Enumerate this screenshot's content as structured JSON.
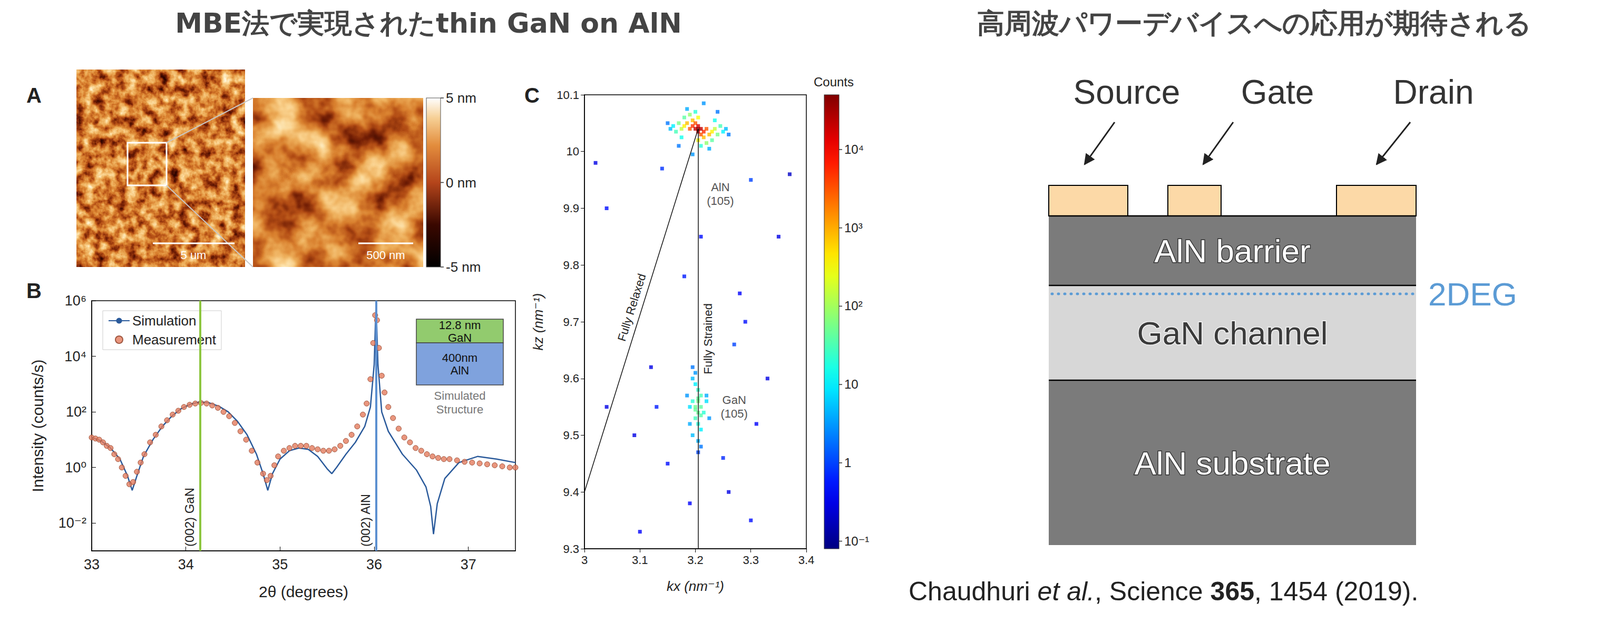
{
  "header": {
    "left": "MBE法で実現されたthin GaN on AlN",
    "right": "高周波パワーデバイスへの応用が期待される"
  },
  "panel_a": {
    "label": "A",
    "scale_bars": [
      "5 um",
      "500 nm"
    ],
    "colorbar": {
      "range": [
        -5,
        5
      ],
      "ticks": [
        {
          "value": 5,
          "label": "5 nm"
        },
        {
          "value": 0,
          "label": "0 nm"
        },
        {
          "value": -5,
          "label": "-5 nm"
        }
      ]
    }
  },
  "chart_data": [
    {
      "panel": "B",
      "type": "line",
      "log": "y",
      "xlabel": "2θ (degrees)",
      "ylabel": "Intensity (counts/s)",
      "xlim": [
        33,
        37.5
      ],
      "xticks": [
        33,
        34,
        35,
        36,
        37
      ],
      "ylim": [
        0.001,
        1000000
      ],
      "yticks": [
        {
          "value": 1000000,
          "label": "10⁶"
        },
        {
          "value": 10000,
          "label": "10⁴"
        },
        {
          "value": 100,
          "label": "10²"
        },
        {
          "value": 1,
          "label": "10⁰"
        },
        {
          "value": 0.01,
          "label": "10⁻²"
        }
      ],
      "legend": "upper left",
      "series": [
        {
          "name": "Simulation",
          "type": "line",
          "color": "#2a5a9b",
          "x": [
            33.0,
            33.1,
            33.2,
            33.3,
            33.38,
            33.43,
            33.48,
            33.55,
            33.65,
            33.75,
            33.85,
            33.95,
            34.05,
            34.15,
            34.25,
            34.35,
            34.45,
            34.55,
            34.65,
            34.75,
            34.82,
            34.87,
            34.92,
            35.0,
            35.1,
            35.2,
            35.3,
            35.4,
            35.5,
            35.55,
            35.6,
            35.7,
            35.8,
            35.9,
            35.96,
            36.0,
            36.02,
            36.04,
            36.08,
            36.15,
            36.3,
            36.45,
            36.55,
            36.6,
            36.63,
            36.67,
            36.75,
            36.9,
            37.1,
            37.3,
            37.5
          ],
          "values": [
            12,
            9,
            5,
            2,
            0.5,
            0.15,
            0.5,
            2.5,
            10,
            30,
            70,
            130,
            190,
            230,
            210,
            160,
            100,
            45,
            15,
            3,
            0.6,
            0.15,
            0.6,
            2,
            4,
            5,
            4.5,
            2.5,
            0.9,
            0.6,
            1,
            3,
            8,
            30,
            150,
            5000,
            800000,
            5000,
            100,
            20,
            3,
            0.8,
            0.2,
            0.04,
            0.004,
            0.05,
            0.4,
            1.5,
            2.5,
            2,
            1.5
          ]
        },
        {
          "name": "Measurement",
          "type": "scatter",
          "color": "#e47c5e",
          "marker": "circle",
          "x": [
            33.0,
            33.04,
            33.08,
            33.12,
            33.16,
            33.2,
            33.24,
            33.28,
            33.32,
            33.36,
            33.4,
            33.44,
            33.48,
            33.52,
            33.56,
            33.62,
            33.68,
            33.74,
            33.8,
            33.86,
            33.92,
            33.98,
            34.04,
            34.1,
            34.16,
            34.22,
            34.28,
            34.34,
            34.4,
            34.46,
            34.52,
            34.58,
            34.64,
            34.7,
            34.76,
            34.82,
            34.86,
            34.9,
            34.94,
            34.98,
            35.04,
            35.1,
            35.16,
            35.22,
            35.28,
            35.34,
            35.4,
            35.46,
            35.52,
            35.58,
            35.64,
            35.7,
            35.76,
            35.82,
            35.88,
            35.92,
            35.96,
            35.99,
            36.01,
            36.03,
            36.05,
            36.08,
            36.11,
            36.15,
            36.2,
            36.26,
            36.32,
            36.38,
            36.44,
            36.5,
            36.56,
            36.62,
            36.68,
            36.74,
            36.8,
            36.88,
            36.96,
            37.04,
            37.12,
            37.2,
            37.28,
            37.36,
            37.44,
            37.5
          ],
          "values": [
            12,
            11,
            10,
            8,
            6,
            5,
            3,
            2,
            1,
            0.5,
            0.25,
            0.3,
            0.7,
            1.5,
            3,
            8,
            15,
            30,
            50,
            80,
            110,
            150,
            180,
            200,
            210,
            200,
            170,
            140,
            100,
            70,
            40,
            20,
            10,
            4,
            1.5,
            0.6,
            0.35,
            0.5,
            1.2,
            2.5,
            4,
            5,
            6,
            6,
            6,
            5,
            4.5,
            4,
            4,
            4.5,
            6,
            9,
            15,
            30,
            80,
            200,
            1500,
            30000,
            300000,
            200000,
            20000,
            2000,
            500,
            150,
            60,
            25,
            12,
            8,
            5,
            4,
            3,
            2.5,
            2.2,
            2,
            2,
            1.8,
            1.6,
            1.5,
            1.4,
            1.3,
            1.2,
            1.1,
            1,
            1
          ]
        }
      ],
      "markers": [
        {
          "x": 34.15,
          "label": "(002) GaN",
          "color": "#8dc63f"
        },
        {
          "x": 36.02,
          "label": "(002) AlN",
          "color": "#5b8fd0"
        }
      ],
      "inset": {
        "layers": [
          {
            "lines": [
              "12.8 nm",
              "GaN"
            ],
            "color": "#92cb6e"
          },
          {
            "lines": [
              "400nm",
              "AlN"
            ],
            "color": "#7fa2dd"
          }
        ],
        "caption": [
          "Simulated",
          "Structure"
        ]
      }
    },
    {
      "panel": "C",
      "type": "scatter",
      "xlabel": "kx (nm⁻¹)",
      "ylabel": "kz (nm⁻¹)",
      "xlim": [
        3,
        3.4
      ],
      "xticks": [
        3,
        3.1,
        3.2,
        3.3,
        3.4
      ],
      "ylim": [
        9.3,
        10.1
      ],
      "yticks": [
        9.3,
        9.4,
        9.5,
        9.6,
        9.7,
        9.8,
        9.9,
        10,
        10.1
      ],
      "colorbar": {
        "title": "Counts",
        "range": [
          0.08,
          50000
        ],
        "ticks": [
          {
            "value": 10000,
            "label": "10⁴"
          },
          {
            "value": 1000,
            "label": "10³"
          },
          {
            "value": 100,
            "label": "10²"
          },
          10,
          1,
          {
            "value": 0.1,
            "label": "10⁻¹"
          }
        ]
      },
      "lines": [
        {
          "label": "Fully Relaxed",
          "x": [
            3,
            3.205
          ],
          "y": [
            9.4,
            10.04
          ]
        },
        {
          "label": "Fully Strained",
          "x": [
            3.205,
            3.205
          ],
          "y": [
            9.3,
            10.04
          ]
        }
      ],
      "annotations": [
        {
          "text": "AlN (105)",
          "x": 3.245,
          "y": 9.925
        },
        {
          "text": "GaN (105)",
          "x": 3.27,
          "y": 9.55
        }
      ],
      "cells": [
        [
          3.04,
          9.9,
          0.5
        ],
        [
          3.12,
          9.62,
          0.3
        ],
        [
          3.28,
          9.75,
          0.4
        ],
        [
          3.33,
          9.6,
          0.3
        ],
        [
          3.15,
          9.45,
          0.5
        ],
        [
          3.26,
          9.4,
          0.3
        ],
        [
          3.1,
          9.33,
          0.4
        ],
        [
          3.35,
          9.85,
          0.3
        ],
        [
          3.04,
          9.55,
          0.3
        ],
        [
          3.3,
          9.35,
          0.5
        ],
        [
          3.18,
          9.78,
          0.6
        ],
        [
          3.27,
          9.66,
          1
        ],
        [
          3.14,
          9.97,
          0.8
        ],
        [
          3.3,
          9.95,
          1
        ],
        [
          3.21,
          9.85,
          0.5
        ],
        [
          3.31,
          9.52,
          0.4
        ],
        [
          3.13,
          9.55,
          0.6
        ],
        [
          3.25,
          9.46,
          0.7
        ],
        [
          3.09,
          9.5,
          0.3
        ],
        [
          3.37,
          9.96,
          0.2
        ],
        [
          3.02,
          9.98,
          0.3
        ],
        [
          3.19,
          9.38,
          0.4
        ],
        [
          3.29,
          9.7,
          0.5
        ],
        [
          3.205,
          9.56,
          60
        ],
        [
          3.2,
          9.55,
          50
        ],
        [
          3.21,
          9.55,
          40
        ],
        [
          3.205,
          9.54,
          50
        ],
        [
          3.2,
          9.53,
          30
        ],
        [
          3.21,
          9.57,
          30
        ],
        [
          3.195,
          9.56,
          20
        ],
        [
          3.215,
          9.54,
          20
        ],
        [
          3.205,
          9.58,
          25
        ],
        [
          3.205,
          9.52,
          20
        ],
        [
          3.2,
          9.59,
          10
        ],
        [
          3.21,
          9.51,
          10
        ],
        [
          3.19,
          9.55,
          8
        ],
        [
          3.22,
          9.56,
          8
        ],
        [
          3.195,
          9.5,
          5
        ],
        [
          3.195,
          9.6,
          5
        ],
        [
          3.205,
          9.49,
          4
        ],
        [
          3.2,
          9.61,
          3
        ],
        [
          3.185,
          9.57,
          3
        ],
        [
          3.225,
          9.53,
          3
        ],
        [
          3.21,
          9.48,
          2
        ],
        [
          3.195,
          9.62,
          2
        ],
        [
          3.19,
          9.52,
          4
        ],
        [
          3.22,
          9.57,
          4
        ],
        [
          3.205,
          9.565,
          45
        ],
        [
          3.2,
          9.545,
          45
        ],
        [
          3.21,
          9.535,
          35
        ],
        [
          3.205,
          9.47,
          1
        ],
        [
          3.15,
          10.05,
          2
        ],
        [
          3.26,
          10.03,
          2
        ],
        [
          3.195,
          9.995,
          3
        ],
        [
          3.215,
          10.085,
          3
        ],
        [
          3.17,
          10.01,
          2
        ],
        [
          3.24,
          10.07,
          2
        ],
        [
          3.155,
          10.04,
          5
        ],
        [
          3.255,
          10.04,
          5
        ],
        [
          3.185,
          10.075,
          4
        ],
        [
          3.225,
          10.005,
          4
        ],
        [
          3.16,
          10.045,
          10
        ],
        [
          3.25,
          10.035,
          10
        ],
        [
          3.175,
          10.025,
          15
        ],
        [
          3.235,
          10.055,
          15
        ],
        [
          3.2,
          10.07,
          20
        ],
        [
          3.21,
          10.01,
          20
        ],
        [
          3.165,
          10.035,
          30
        ],
        [
          3.245,
          10.045,
          30
        ],
        [
          3.18,
          10.06,
          40
        ],
        [
          3.23,
          10.02,
          40
        ],
        [
          3.17,
          10.05,
          60
        ],
        [
          3.24,
          10.03,
          60
        ],
        [
          3.19,
          10.065,
          80
        ],
        [
          3.22,
          10.015,
          80
        ],
        [
          3.175,
          10.04,
          150
        ],
        [
          3.235,
          10.04,
          150
        ],
        [
          3.205,
          10.06,
          300
        ],
        [
          3.205,
          10.02,
          300
        ],
        [
          3.18,
          10.045,
          400
        ],
        [
          3.23,
          10.035,
          400
        ],
        [
          3.185,
          10.05,
          800
        ],
        [
          3.225,
          10.03,
          800
        ],
        [
          3.195,
          10.055,
          800
        ],
        [
          3.215,
          10.025,
          800
        ],
        [
          3.19,
          10.04,
          3000
        ],
        [
          3.22,
          10.04,
          3000
        ],
        [
          3.2,
          10.05,
          3000
        ],
        [
          3.21,
          10.03,
          3000
        ],
        [
          3.195,
          10.045,
          5000
        ],
        [
          3.215,
          10.035,
          5000
        ],
        [
          3.205,
          10.045,
          15000
        ],
        [
          3.205,
          10.035,
          15000
        ],
        [
          3.2,
          10.04,
          20000
        ],
        [
          3.21,
          10.04,
          20000
        ],
        [
          3.205,
          10.04,
          40000
        ]
      ]
    }
  ],
  "device": {
    "contacts": [
      "Source",
      "Gate",
      "Drain"
    ],
    "layers": [
      "AlN barrier",
      "GaN channel",
      "AlN substrate"
    ],
    "channel_label": "2DEG"
  },
  "citation": [
    {
      "text": "Chaudhuri "
    },
    {
      "text": "et al.",
      "style": "italic"
    },
    {
      "text": ", Science "
    },
    {
      "text": "365",
      "style": "bold"
    },
    {
      "text": ", 1454 (2019)."
    }
  ]
}
